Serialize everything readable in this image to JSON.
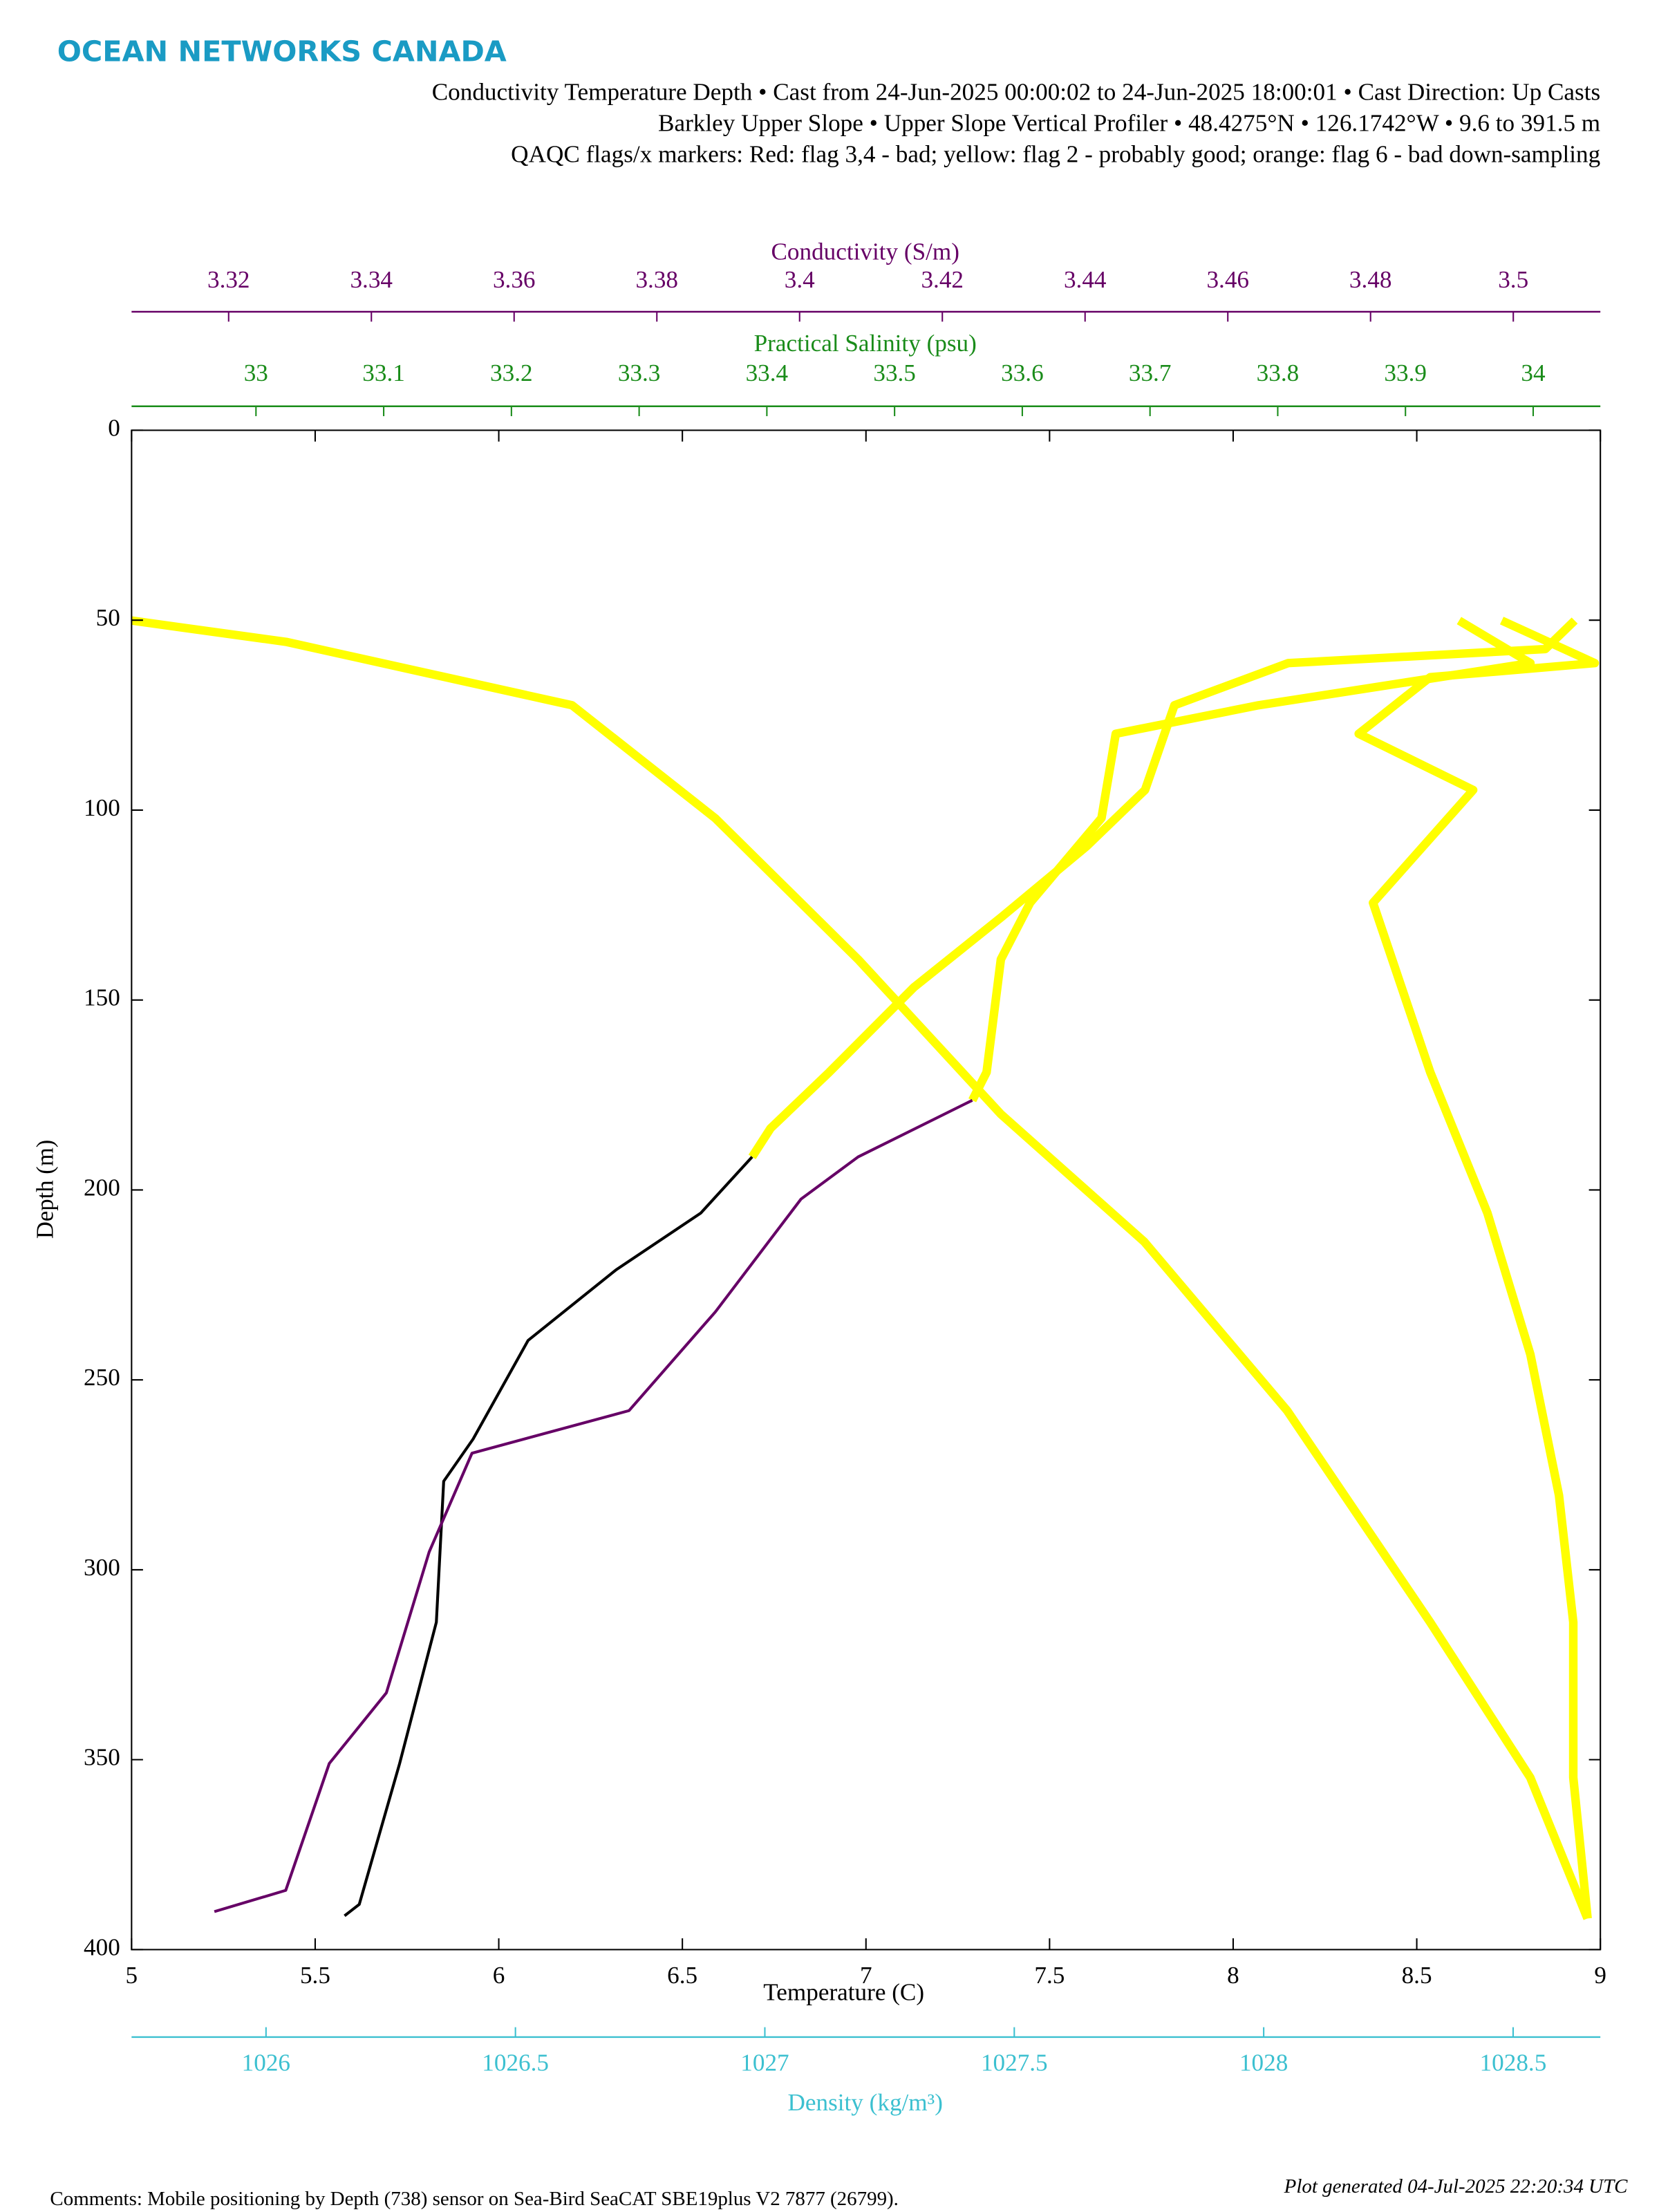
{
  "header": {
    "logo": "OCEAN NETWORKS CANADA",
    "lines": [
      "Conductivity Temperature Depth • Cast from 24-Jun-2025 00:00:02 to 24-Jun-2025 18:00:01 • Cast Direction: Up Casts",
      "Barkley Upper Slope • Upper Slope Vertical Profiler • 48.4275°N • 126.1742°W • 9.6 to 391.5 m",
      "QAQC flags/x markers: Red: flag 3,4 - bad; yellow: flag 2 - probably good; orange: flag 6 - bad down-sampling"
    ]
  },
  "chart_data": {
    "type": "line",
    "xlabel": "Temperature (C)",
    "ylabel": "Depth (m)",
    "xlim": [
      5,
      9
    ],
    "xticks": [
      5,
      5.5,
      6,
      6.5,
      7,
      7.5,
      8,
      8.5,
      9
    ],
    "ylim": [
      0,
      400
    ],
    "yticks": [
      0,
      50,
      100,
      150,
      200,
      250,
      300,
      350,
      400
    ],
    "y_reversed": true,
    "x2label": "Conductivity (S/m)",
    "x2lim": [
      3.3064,
      3.5122
    ],
    "x2ticks": [
      3.32,
      3.34,
      3.36,
      3.38,
      3.4,
      3.42,
      3.44,
      3.46,
      3.48,
      3.5
    ],
    "x2color": "#660066",
    "x3label": "Practical Salinity (psu)",
    "x3lim": [
      32.9026,
      34.0526
    ],
    "x3ticks": [
      33,
      33.1,
      33.2,
      33.3,
      33.4,
      33.5,
      33.6,
      33.7,
      33.8,
      33.9,
      34
    ],
    "x3color": "#1a8c1a",
    "x4label": "Density (kg/m³)",
    "x4lim": [
      1025.7305,
      1028.6749
    ],
    "x4ticks": [
      1026,
      1026.5,
      1027,
      1027.5,
      1028,
      1028.5
    ],
    "x4color": "#3cc0d0",
    "series": [
      {
        "color": "#ffff00",
        "axis": "x4",
        "x": [
          1025.7305,
          1026.0401,
          1026.6135,
          1026.9002,
          1027.1869,
          1027.4736,
          1027.7603,
          1028.047,
          1028.3337,
          1028.5344,
          1028.6491
        ],
        "y": [
          50.1,
          55.7,
          72.4,
          102.1,
          139.3,
          180.1,
          213.6,
          258.1,
          313.8,
          354.7,
          391.8
        ]
      },
      {
        "color": "#ffff00",
        "axis": "x3",
        "x": [
          33.9754,
          34.0482,
          33.9194,
          33.8634,
          33.953,
          33.8746,
          33.897,
          33.9194,
          33.9642,
          33.9978,
          34.0202,
          34.0314,
          34.0314,
          34.0426
        ],
        "y": [
          50.1,
          61.3,
          65,
          79.9,
          94.7,
          124.4,
          146.7,
          169,
          206.1,
          243.3,
          280.4,
          313.8,
          354.7,
          391.8
        ]
      },
      {
        "color": "#ffff00",
        "axis": "x",
        "x": [
          8.93,
          8.85,
          8.15,
          7.84,
          7.76,
          7.6,
          7.37,
          7.13,
          6.9,
          6.74,
          6.69
        ],
        "y": [
          50.1,
          57.6,
          61.3,
          72.4,
          94.7,
          109.6,
          128.1,
          146.7,
          169,
          183.8,
          191.3
        ]
      },
      {
        "color": "#000000",
        "axis": "x",
        "x": [
          6.69,
          6.55,
          6.32,
          6.08,
          5.93,
          5.85,
          5.83,
          5.73,
          5.62,
          5.58
        ],
        "y": [
          191.3,
          206.1,
          221,
          239.6,
          265.6,
          276.7,
          313.8,
          351,
          388.1,
          391.1
        ]
      },
      {
        "color": "#ffff00",
        "axis": "x2",
        "x": [
          3.4924,
          3.5024,
          3.4643,
          3.4443,
          3.4423,
          3.4323,
          3.4282,
          3.4262,
          3.4242
        ],
        "y": [
          50.1,
          61.3,
          72.4,
          79.9,
          102.1,
          124.4,
          139.3,
          169,
          176.4
        ]
      },
      {
        "color": "#660066",
        "axis": "x2",
        "x": [
          3.4242,
          3.4082,
          3.4002,
          3.3882,
          3.3761,
          3.3541,
          3.3481,
          3.3421,
          3.3341,
          3.328,
          3.318
        ],
        "y": [
          176.4,
          191.3,
          202.4,
          232.1,
          258.1,
          269.3,
          295.3,
          332.4,
          351,
          384.4,
          390
        ]
      }
    ]
  },
  "footer": {
    "generated": "Plot generated 04-Jul-2025 22:20:34 UTC",
    "comments": "Comments: Mobile positioning by Depth (738) sensor on Sea-Bird SeaCAT SBE19plus V2 7877 (26799)."
  }
}
